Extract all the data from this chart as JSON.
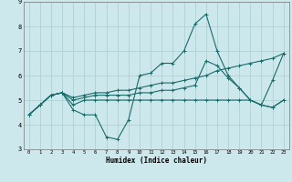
{
  "xlabel": "Humidex (Indice chaleur)",
  "x": [
    0,
    1,
    2,
    3,
    4,
    5,
    6,
    7,
    8,
    9,
    10,
    11,
    12,
    13,
    14,
    15,
    16,
    17,
    18,
    19,
    20,
    21,
    22,
    23
  ],
  "line1": [
    4.4,
    4.8,
    5.2,
    5.3,
    4.6,
    4.4,
    4.4,
    3.5,
    3.4,
    4.2,
    6.0,
    6.1,
    6.5,
    6.5,
    7.0,
    8.1,
    8.5,
    7.0,
    6.0,
    5.5,
    5.0,
    4.8,
    5.8,
    6.9
  ],
  "line2": [
    4.4,
    4.8,
    5.2,
    5.3,
    4.8,
    5.0,
    5.0,
    5.0,
    5.0,
    5.0,
    5.0,
    5.0,
    5.0,
    5.0,
    5.0,
    5.0,
    5.0,
    5.0,
    5.0,
    5.0,
    5.0,
    4.8,
    4.7,
    5.0
  ],
  "line3": [
    4.4,
    4.8,
    5.2,
    5.3,
    5.1,
    5.2,
    5.3,
    5.3,
    5.4,
    5.4,
    5.5,
    5.6,
    5.7,
    5.7,
    5.8,
    5.9,
    6.0,
    6.2,
    6.3,
    6.4,
    6.5,
    6.6,
    6.7,
    6.9
  ],
  "line4": [
    4.4,
    4.8,
    5.2,
    5.3,
    5.0,
    5.1,
    5.2,
    5.2,
    5.2,
    5.2,
    5.3,
    5.3,
    5.4,
    5.4,
    5.5,
    5.6,
    6.6,
    6.4,
    5.9,
    5.5,
    5.0,
    4.8,
    4.7,
    5.0
  ],
  "bg_color": "#cce8ec",
  "line_color": "#1a6b6b",
  "grid_color": "#aacece",
  "ylim": [
    3.0,
    9.0
  ],
  "xlim": [
    -0.5,
    23.5
  ],
  "yticks": [
    3,
    4,
    5,
    6,
    7,
    8,
    9
  ],
  "xticks": [
    0,
    1,
    2,
    3,
    4,
    5,
    6,
    7,
    8,
    9,
    10,
    11,
    12,
    13,
    14,
    15,
    16,
    17,
    18,
    19,
    20,
    21,
    22,
    23
  ]
}
